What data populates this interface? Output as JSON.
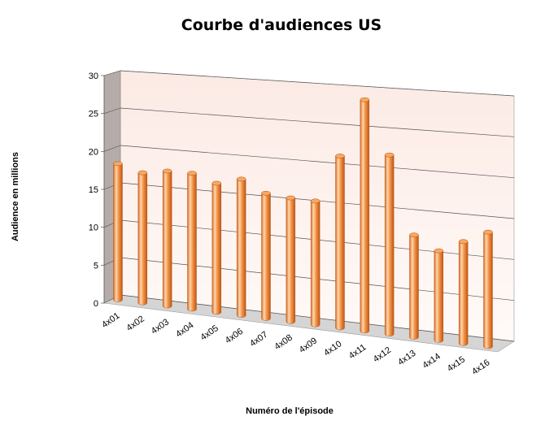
{
  "chart_data": {
    "type": "bar",
    "title": "Courbe d'audiences US",
    "xlabel": "Numéro de l'épisode",
    "ylabel": "Audience en millions",
    "categories": [
      "4x01",
      "4x02",
      "4x03",
      "4x04",
      "4x05",
      "4x06",
      "4x07",
      "4x08",
      "4x09",
      "4x10",
      "4x11",
      "4x12",
      "4x13",
      "4x14",
      "4x15",
      "4x16"
    ],
    "values": [
      18.0,
      17.1,
      17.6,
      17.6,
      16.6,
      17.4,
      15.9,
      15.6,
      15.5,
      21.3,
      28.4,
      21.9,
      12.5,
      10.9,
      12.3,
      13.7
    ],
    "ylim": [
      0,
      30
    ],
    "yticks": [
      0,
      5,
      10,
      15,
      20,
      25,
      30
    ],
    "grid": true,
    "legend": "none",
    "colors": {
      "bar": "#f08a3c",
      "bar_light": "#fdd7b0",
      "bar_dark": "#c2540f",
      "back_wall": "#fdf2ee",
      "side_wall": "#b5aca9",
      "floor": "#d5d5d5",
      "gridline": "#000000"
    }
  }
}
